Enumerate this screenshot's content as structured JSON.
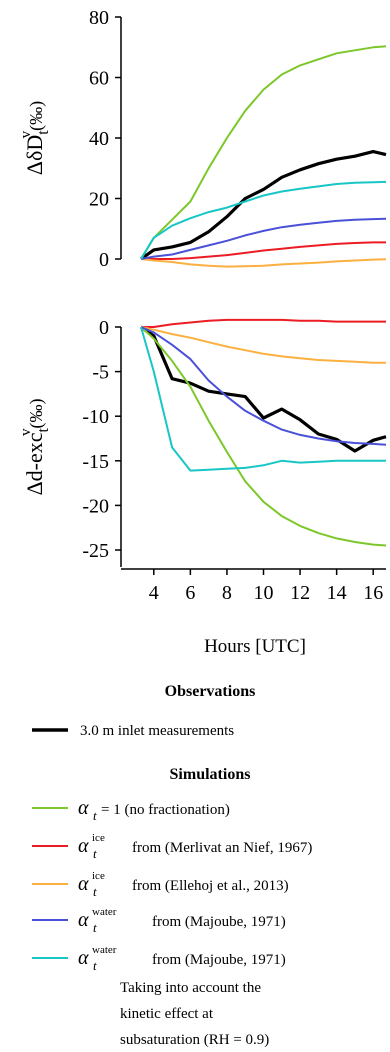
{
  "chart_data": [
    {
      "type": "line",
      "ylabel": "ΔδD_t^v(‰)",
      "ylim": [
        0,
        80
      ],
      "yticks": [
        0,
        20,
        40,
        60,
        80
      ],
      "xlim": [
        3.3,
        16.7
      ],
      "x": [
        3.3,
        4,
        5,
        6,
        7,
        8,
        9,
        10,
        11,
        12,
        13,
        14,
        15,
        16,
        16.7
      ],
      "series": [
        {
          "key": "obs",
          "color": "#000000",
          "values": [
            0,
            3,
            4,
            5.5,
            9,
            14,
            20,
            23,
            27,
            29.5,
            31.5,
            33,
            34,
            35.5,
            34.5
          ]
        },
        {
          "key": "nofrac",
          "color": "#7cc72a",
          "values": [
            0,
            7,
            13,
            19,
            30,
            40,
            49,
            56,
            61,
            64,
            66,
            68,
            69,
            70,
            70.3
          ]
        },
        {
          "key": "merlivat",
          "color": "#ec1c24",
          "values": [
            0,
            0,
            0,
            0.3,
            0.8,
            1.3,
            2,
            2.8,
            3.4,
            4,
            4.5,
            5,
            5.3,
            5.5,
            5.5
          ]
        },
        {
          "key": "ellehoj",
          "color": "#fbb040",
          "values": [
            0,
            -0.5,
            -1,
            -1.8,
            -2.2,
            -2.5,
            -2.4,
            -2.2,
            -1.8,
            -1.5,
            -1.2,
            -0.8,
            -0.5,
            -0.2,
            -0.1
          ]
        },
        {
          "key": "majoube",
          "color": "#4a50d8",
          "values": [
            0,
            0.8,
            1.5,
            3,
            4.5,
            6,
            7.8,
            9.3,
            10.5,
            11.3,
            12,
            12.6,
            13,
            13.2,
            13.3
          ]
        },
        {
          "key": "majoube_kin",
          "color": "#18c6c6",
          "values": [
            0,
            7,
            11,
            13.5,
            15.5,
            17,
            19,
            21,
            22.3,
            23.2,
            24,
            24.8,
            25.2,
            25.4,
            25.5
          ]
        }
      ]
    },
    {
      "type": "line",
      "ylabel": "Δd-exc_t^v(‰)",
      "ylim": [
        -26.5,
        0
      ],
      "yticks": [
        0,
        -5,
        -10,
        -15,
        -20,
        -25
      ],
      "xlim": [
        3.3,
        16.7
      ],
      "xticks": [
        4,
        6,
        8,
        10,
        12,
        14,
        16
      ],
      "xlabel": "Hours [UTC]",
      "x": [
        3.3,
        4,
        5,
        6,
        7,
        8,
        9,
        10,
        11,
        12,
        13,
        14,
        15,
        16,
        16.7
      ],
      "series": [
        {
          "key": "obs",
          "color": "#000000",
          "values": [
            0,
            -1,
            -5.8,
            -6.3,
            -7.2,
            -7.5,
            -7.8,
            -10.2,
            -9.2,
            -10.4,
            -12,
            -12.6,
            -13.9,
            -12.7,
            -12.3
          ]
        },
        {
          "key": "nofrac",
          "color": "#7cc72a",
          "values": [
            0,
            -1.3,
            -3.8,
            -6.7,
            -10.5,
            -14,
            -17.3,
            -19.6,
            -21.2,
            -22.3,
            -23.1,
            -23.7,
            -24.1,
            -24.4,
            -24.5
          ]
        },
        {
          "key": "merlivat",
          "color": "#ec1c24",
          "values": [
            0,
            0,
            0.3,
            0.5,
            0.7,
            0.8,
            0.8,
            0.8,
            0.8,
            0.7,
            0.7,
            0.6,
            0.6,
            0.6,
            0.6
          ]
        },
        {
          "key": "ellehoj",
          "color": "#fbb040",
          "values": [
            0,
            -0.3,
            -0.8,
            -1.2,
            -1.7,
            -2.2,
            -2.6,
            -3,
            -3.3,
            -3.5,
            -3.7,
            -3.8,
            -3.9,
            -4,
            -4
          ]
        },
        {
          "key": "majoube",
          "color": "#4a50d8",
          "values": [
            0,
            -0.6,
            -2,
            -3.6,
            -6,
            -7.8,
            -9.4,
            -10.5,
            -11.5,
            -12.1,
            -12.5,
            -12.8,
            -13,
            -13.1,
            -13.2
          ]
        },
        {
          "key": "majoube_kin",
          "color": "#18c6c6",
          "values": [
            0,
            -5,
            -13.5,
            -16.1,
            -16,
            -15.9,
            -15.8,
            -15.5,
            -15,
            -15.2,
            -15.1,
            -15,
            -15,
            -15,
            -15
          ]
        }
      ]
    }
  ],
  "legend": {
    "observations_heading": "Observations",
    "observations": [
      {
        "key": "obs",
        "label": "3.0 m inlet measurements"
      }
    ],
    "simulations_heading": "Simulations",
    "simulations": [
      {
        "key": "nofrac",
        "symbol": "α",
        "sub": "t",
        "sup": "",
        "label": " = 1 (no fractionation)"
      },
      {
        "key": "merlivat",
        "symbol": "α",
        "sub": "t",
        "sup": "ice",
        "label": "from (Merlivat an Nief, 1967)"
      },
      {
        "key": "ellehoj",
        "symbol": "α",
        "sub": "t",
        "sup": "ice",
        "label": "from (Ellehoj et al., 2013)"
      },
      {
        "key": "majoube",
        "symbol": "α",
        "sub": "t",
        "sup": "water",
        "label": "from (Majoube, 1971)"
      },
      {
        "key": "majoube_kin",
        "symbol": "α",
        "sub": "t",
        "sup": "water",
        "label": "from (Majoube, 1971)",
        "extra": [
          "Taking into account the",
          "kinetic effect at",
          "subsaturation (RH = 0.9)"
        ]
      }
    ]
  }
}
